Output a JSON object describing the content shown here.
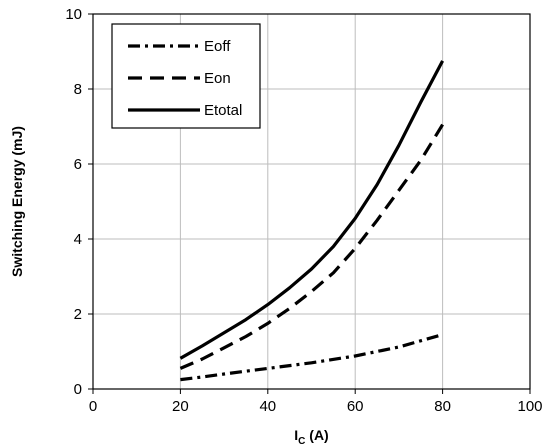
{
  "chart_data": {
    "type": "line",
    "xlabel": "I",
    "xlabel_sub": "C",
    "xlabel_unit": " (A)",
    "ylabel": "Switching Energy (mJ)",
    "xlim": [
      0,
      100
    ],
    "ylim": [
      0,
      10
    ],
    "xticks": [
      0,
      20,
      40,
      60,
      80,
      100
    ],
    "yticks": [
      0,
      2,
      4,
      6,
      8,
      10
    ],
    "grid": true,
    "legend_position": "top-left",
    "series": [
      {
        "name": "Eoff",
        "style": "dashdot",
        "x": [
          20,
          25,
          30,
          40,
          50,
          60,
          70,
          80
        ],
        "y": [
          0.25,
          0.32,
          0.4,
          0.55,
          0.7,
          0.88,
          1.12,
          1.45
        ]
      },
      {
        "name": "Eon",
        "style": "dashed",
        "x": [
          20,
          25,
          30,
          35,
          40,
          45,
          50,
          55,
          60,
          65,
          70,
          75,
          80
        ],
        "y": [
          0.55,
          0.8,
          1.1,
          1.4,
          1.75,
          2.15,
          2.6,
          3.1,
          3.75,
          4.5,
          5.3,
          6.1,
          7.05
        ]
      },
      {
        "name": "Etotal",
        "style": "solid",
        "x": [
          20,
          25,
          30,
          35,
          40,
          45,
          50,
          55,
          60,
          65,
          70,
          75,
          80
        ],
        "y": [
          0.82,
          1.15,
          1.5,
          1.85,
          2.25,
          2.7,
          3.2,
          3.8,
          4.55,
          5.45,
          6.5,
          7.65,
          8.75
        ]
      }
    ]
  }
}
